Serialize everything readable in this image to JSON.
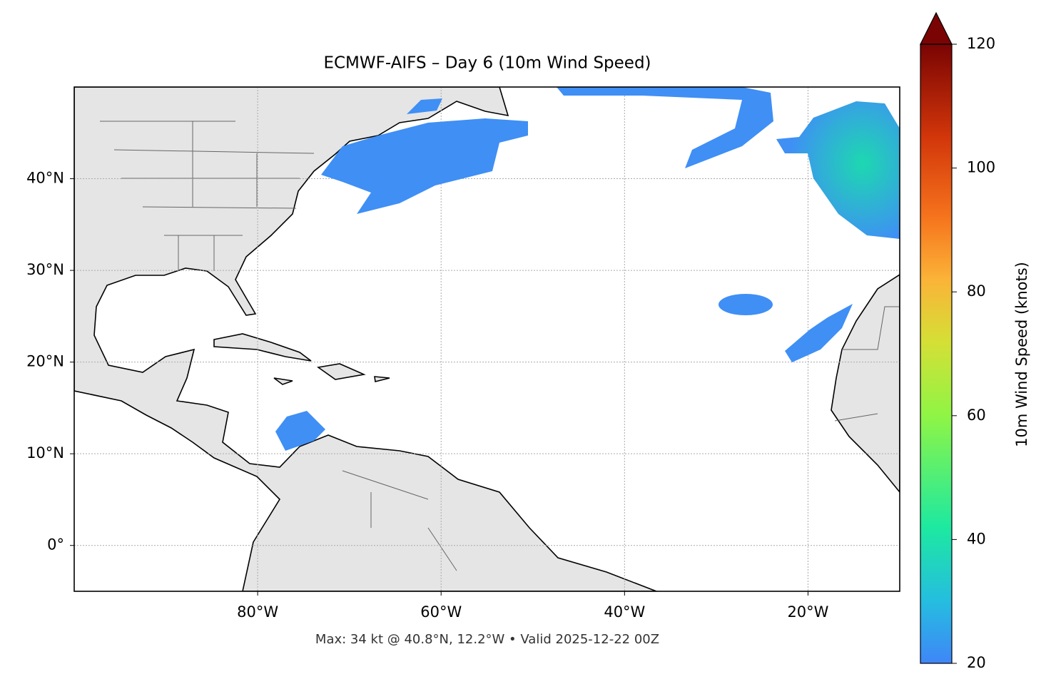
{
  "chart_data": {
    "type": "map",
    "title": "ECMWF-AIFS – Day 6 (10m Wind Speed)",
    "xlim": [
      -100,
      -10
    ],
    "ylim": [
      -5,
      50
    ],
    "xticks": [
      {
        "value": -80,
        "label": "80°W"
      },
      {
        "value": -60,
        "label": "60°W"
      },
      {
        "value": -40,
        "label": "40°W"
      },
      {
        "value": -20,
        "label": "20°W"
      }
    ],
    "yticks": [
      {
        "value": 0,
        "label": "0°"
      },
      {
        "value": 10,
        "label": "10°N"
      },
      {
        "value": 20,
        "label": "20°N"
      },
      {
        "value": 30,
        "label": "30°N"
      },
      {
        "value": 40,
        "label": "40°N"
      }
    ],
    "grid": true,
    "footer": "Max: 34 kt @ 40.8°N, 12.2°W • Valid 2025-12-22 00Z",
    "colorbar": {
      "label": "10m Wind Speed (knots)",
      "lim": [
        20,
        120
      ],
      "ticks": [
        20,
        40,
        60,
        80,
        100,
        120
      ]
    }
  }
}
